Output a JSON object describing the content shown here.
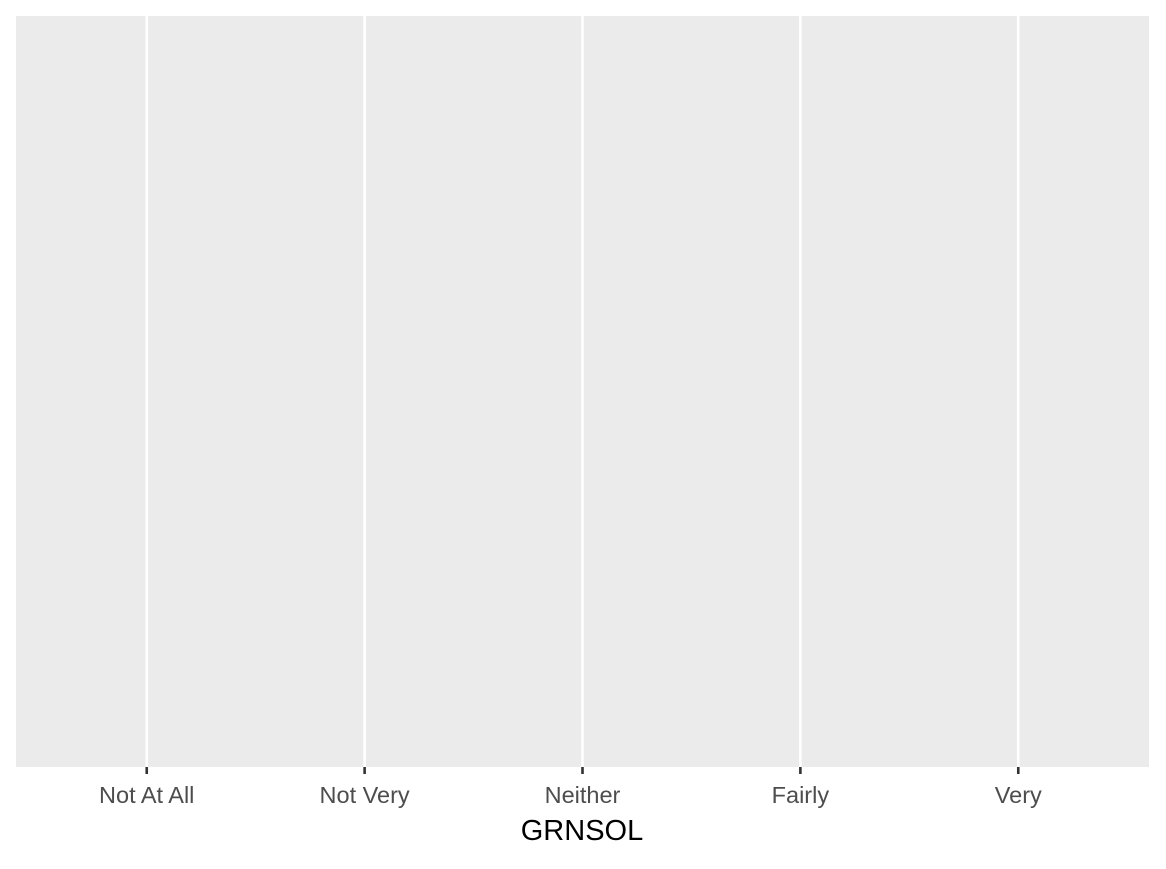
{
  "chart_data": {
    "type": "bar",
    "title": "",
    "xlabel": "GRNSOL",
    "ylabel": "",
    "categories": [
      "Not At All",
      "Not Very",
      "Neither",
      "Fairly",
      "Very"
    ],
    "series": [],
    "grid": true,
    "legend": "none",
    "colors": {
      "panel_background": "#EBEBEB",
      "grid_major": "#FFFFFF",
      "tick_label": "#4D4D4D",
      "axis_title": "#000000",
      "tick_mark": "#333333"
    }
  }
}
